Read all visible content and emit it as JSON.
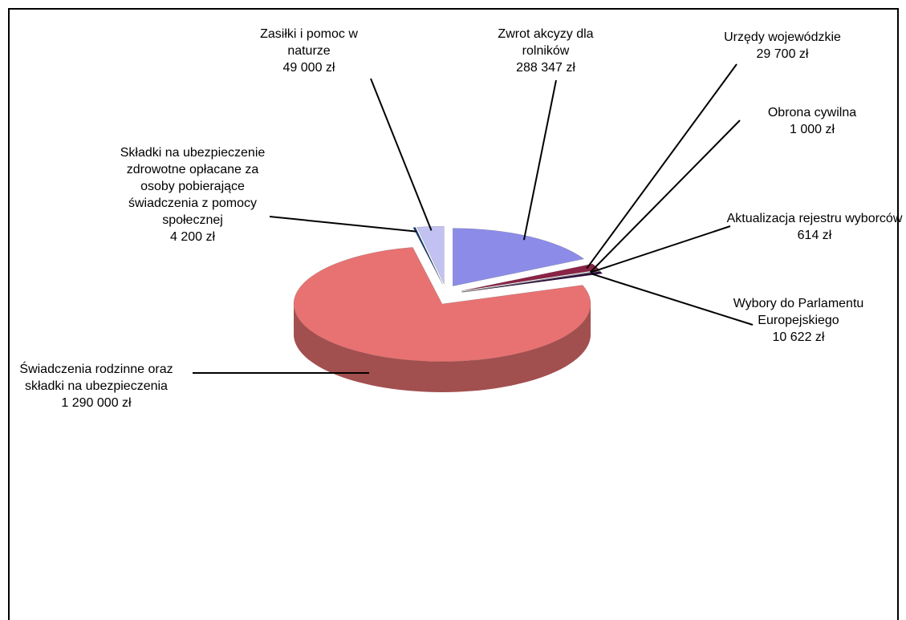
{
  "chart_data": {
    "type": "pie3d",
    "categories": [
      "Zwrot akcyzy dla rolników",
      "Urzędy wojewódzkie",
      "Obrona cywilna",
      "Aktualizacja rejestru wyborców",
      "Wybory do Parlamentu Europejskiego",
      "Świadczenia rodzinne oraz składki na ubezpieczenia",
      "Składki na ubezpieczenie zdrowotne opłacane za osoby pobierające świadczenia z pomocy społecznej",
      "Zasiłki i pomoc w naturze"
    ],
    "values": [
      288347,
      29700,
      1000,
      614,
      10622,
      1290000,
      4200,
      49000
    ],
    "value_labels": [
      "288 347 zł",
      "29 700 zł",
      "1 000 zł",
      "614 zł",
      "10 622 zł",
      "1 290 000 zł",
      "4 200 zł",
      "49 000 zł"
    ],
    "colors": [
      "#8c8ce8",
      "#8a2346",
      "#a0a0d8",
      "#e8e8b0",
      "#2c0a3a",
      "#e87272",
      "#163a6e",
      "#c2c2f2"
    ]
  }
}
